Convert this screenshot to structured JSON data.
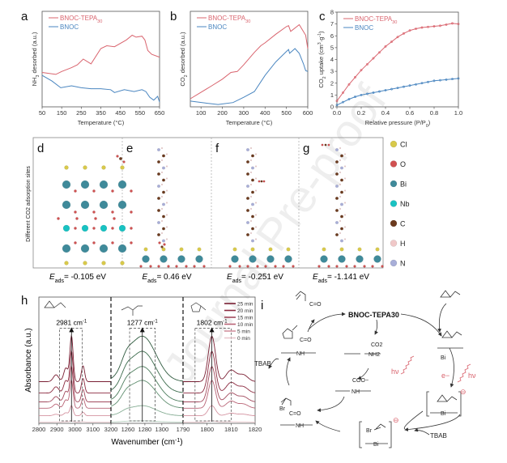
{
  "colors": {
    "tepa": "#d9646e",
    "bnoc": "#4a86c0",
    "accent_red": "#d9646e",
    "cl": "#d8c94a",
    "o": "#d05050",
    "bi": "#3f8a9a",
    "nb": "#19c2c2",
    "c": "#6b3a1e",
    "h": "#f0c8c8",
    "n": "#a8aed8"
  },
  "panels": {
    "a": "a",
    "b": "b",
    "c": "c",
    "d": "d",
    "e": "e",
    "f": "f",
    "g": "g",
    "h": "h",
    "i": "i"
  },
  "chart_data": [
    {
      "id": "a",
      "type": "line",
      "xlabel": "Temperature (°C)",
      "ylabel": "NH3 desorbed (a.u.)",
      "xlim": [
        50,
        650
      ],
      "ylim": [
        0,
        1
      ],
      "xticks": [
        "50",
        "150",
        "250",
        "350",
        "450",
        "550",
        "650"
      ],
      "legend_placement": "top-left",
      "series": [
        {
          "name": "BNOC-TEPA30",
          "color": "#d9646e",
          "x": [
            50,
            120,
            150,
            200,
            230,
            260,
            300,
            350,
            380,
            420,
            480,
            510,
            530,
            560,
            575,
            590,
            610,
            650
          ],
          "y": [
            0.36,
            0.34,
            0.37,
            0.41,
            0.44,
            0.5,
            0.45,
            0.61,
            0.64,
            0.63,
            0.7,
            0.75,
            0.73,
            0.74,
            0.7,
            0.59,
            0.55,
            0.52
          ]
        },
        {
          "name": "BNOC",
          "color": "#4a86c0",
          "x": [
            50,
            100,
            145,
            200,
            250,
            300,
            350,
            400,
            420,
            470,
            520,
            560,
            580,
            600,
            620,
            640,
            650
          ],
          "y": [
            0.33,
            0.27,
            0.2,
            0.22,
            0.2,
            0.19,
            0.19,
            0.18,
            0.15,
            0.18,
            0.16,
            0.18,
            0.16,
            0.1,
            0.07,
            0.11,
            0.05
          ]
        }
      ]
    },
    {
      "id": "b",
      "type": "line",
      "xlabel": "Temperature (°C)",
      "ylabel": "CO2 desorbed (a.u.)",
      "xlim": [
        50,
        600
      ],
      "ylim": [
        0,
        1
      ],
      "xticks": [
        "100",
        "200",
        "300",
        "400",
        "500",
        "600"
      ],
      "legend_placement": "top-left",
      "series": [
        {
          "name": "BNOC-TEPA30",
          "color": "#d9646e",
          "x": [
            50,
            150,
            200,
            240,
            270,
            300,
            350,
            380,
            400,
            450,
            500,
            510,
            520,
            560,
            590,
            600
          ],
          "y": [
            0.085,
            0.22,
            0.29,
            0.36,
            0.37,
            0.44,
            0.57,
            0.64,
            0.67,
            0.76,
            0.84,
            0.85,
            0.79,
            0.86,
            0.75,
            0.61
          ]
        },
        {
          "name": "BNOC",
          "color": "#4a86c0",
          "x": [
            50,
            120,
            180,
            250,
            300,
            350,
            400,
            450,
            500,
            510,
            515,
            540,
            560,
            580,
            590,
            600
          ],
          "y": [
            0.06,
            0.04,
            0.025,
            0.045,
            0.1,
            0.16,
            0.33,
            0.47,
            0.58,
            0.6,
            0.56,
            0.61,
            0.56,
            0.45,
            0.38,
            0.37
          ]
        }
      ]
    },
    {
      "id": "c",
      "type": "line",
      "xlabel": "Relative pressure (P/P0)",
      "ylabel": "CO2 uptake (cm3 g-1)",
      "xlim": [
        0,
        1.0
      ],
      "ylim": [
        0,
        8
      ],
      "xticks": [
        "0.0",
        "0.2",
        "0.4",
        "0.6",
        "0.8",
        "1.0"
      ],
      "yticks": [
        "0",
        "1",
        "2",
        "3",
        "4",
        "5",
        "6",
        "7",
        "8"
      ],
      "legend_placement": "top-left",
      "series": [
        {
          "name": "BNOC-TEPA30",
          "color": "#d9646e",
          "x": [
            0,
            0.05,
            0.1,
            0.15,
            0.2,
            0.25,
            0.3,
            0.35,
            0.4,
            0.45,
            0.5,
            0.55,
            0.6,
            0.65,
            0.7,
            0.75,
            0.8,
            0.85,
            0.9,
            0.95,
            1.0
          ],
          "y": [
            0.5,
            1.2,
            1.9,
            2.5,
            3.1,
            3.6,
            4.1,
            4.6,
            5.1,
            5.5,
            5.9,
            6.2,
            6.45,
            6.6,
            6.7,
            6.75,
            6.8,
            6.85,
            6.95,
            7.05,
            7.0
          ]
        },
        {
          "name": "BNOC",
          "color": "#4a86c0",
          "x": [
            0,
            0.05,
            0.1,
            0.15,
            0.2,
            0.25,
            0.3,
            0.35,
            0.4,
            0.45,
            0.5,
            0.55,
            0.6,
            0.65,
            0.7,
            0.75,
            0.8,
            0.85,
            0.9,
            0.95,
            1.0
          ],
          "y": [
            0.15,
            0.4,
            0.65,
            0.85,
            1.0,
            1.1,
            1.2,
            1.3,
            1.4,
            1.5,
            1.6,
            1.7,
            1.8,
            1.9,
            2.0,
            2.1,
            2.2,
            2.25,
            2.3,
            2.35,
            2.4
          ]
        }
      ]
    },
    {
      "id": "h",
      "type": "line",
      "xlabel": "Wavenumber (cm-1)",
      "ylabel": "Absorbance (a.u.)",
      "xticks": [
        "2800",
        "2900",
        "3000",
        "3100",
        "3200",
        "1260",
        "1280",
        "1300",
        "1790",
        "1800",
        "1810",
        "1820"
      ],
      "segments": [
        {
          "xlim": [
            2800,
            3200
          ],
          "peaks": [
            [
              2981,
              9,
              1.0
            ],
            [
              2950,
              12,
              0.3
            ],
            [
              2895,
              15,
              0.15
            ],
            [
              3045,
              9,
              0.35
            ]
          ],
          "annotation": "2981 cm-1",
          "marker": 2981,
          "box": [
            2915,
            3040
          ]
        },
        {
          "xlim": [
            1240,
            1325
          ],
          "peaks": [
            [
              1277,
              16,
              1.0
            ],
            [
              1258,
              6,
              0.2
            ]
          ],
          "annotation": "1277 cm-1",
          "marker": 1277,
          "box": [
            1262,
            1292
          ]
        },
        {
          "xlim": [
            1790,
            1820
          ],
          "peaks": [
            [
              1802,
              1.5,
              1.0
            ],
            [
              1810,
              2,
              0.25
            ],
            [
              1815,
              2,
              0.15
            ]
          ],
          "annotation": "1802 cm-1",
          "marker": 1802,
          "box": [
            1795,
            1810
          ]
        }
      ],
      "series": [
        {
          "name": "25 min",
          "color": "#7a1f33",
          "green": "#2e5a3e",
          "offset": 0.33,
          "amp": 0.36
        },
        {
          "name": "20 min",
          "color": "#8c2b40",
          "green": "#3b6b4c",
          "offset": 0.24,
          "amp": 0.33
        },
        {
          "name": "15 min",
          "color": "#a24a5d",
          "green": "#4d7d5d",
          "offset": 0.17,
          "amp": 0.28
        },
        {
          "name": "10 min",
          "color": "#b96476",
          "green": "#629072",
          "offset": 0.12,
          "amp": 0.22
        },
        {
          "name": "5 min",
          "color": "#d493a0",
          "green": "#86ad94",
          "offset": 0.06,
          "amp": 0.08
        },
        {
          "name": "0 min",
          "color": "#e9c7cc",
          "green": "#bcd4c4",
          "offset": 0.01,
          "amp": 0.01
        }
      ]
    }
  ],
  "structures": {
    "ylabel": "Different CO2 adsorption sites",
    "energies": [
      {
        "label": "E",
        "sub": "ads",
        "value": "= -0.105 eV"
      },
      {
        "label": "E",
        "sub": "ads",
        "value": "= 0.46 eV"
      },
      {
        "label": "E",
        "sub": "ads",
        "value": "= -0.251 eV"
      },
      {
        "label": "E",
        "sub": "ads",
        "value": "= -1.141 eV"
      }
    ],
    "legend": [
      {
        "element": "Cl",
        "color": "#d8c94a"
      },
      {
        "element": "O",
        "color": "#d05050"
      },
      {
        "element": "Bi",
        "color": "#3f8a9a"
      },
      {
        "element": "Nb",
        "color": "#19c2c2"
      },
      {
        "element": "C",
        "color": "#6b3a1e"
      },
      {
        "element": "H",
        "color": "#f0c8c8"
      },
      {
        "element": "N",
        "color": "#a8aed8"
      }
    ]
  },
  "scheme": {
    "catalyst": "BNOC-TEPA30",
    "co2": "CO2",
    "nh2": "NH2",
    "nh": "NH",
    "coo": "COO−",
    "bi": "Bi",
    "hv": "hν",
    "electron": "e−",
    "tbab": "TBAB",
    "br": "Br",
    "o": "O",
    "c_eq_o": "C=O",
    "minus": "⊖"
  },
  "watermark": "Journal Pre-proof"
}
